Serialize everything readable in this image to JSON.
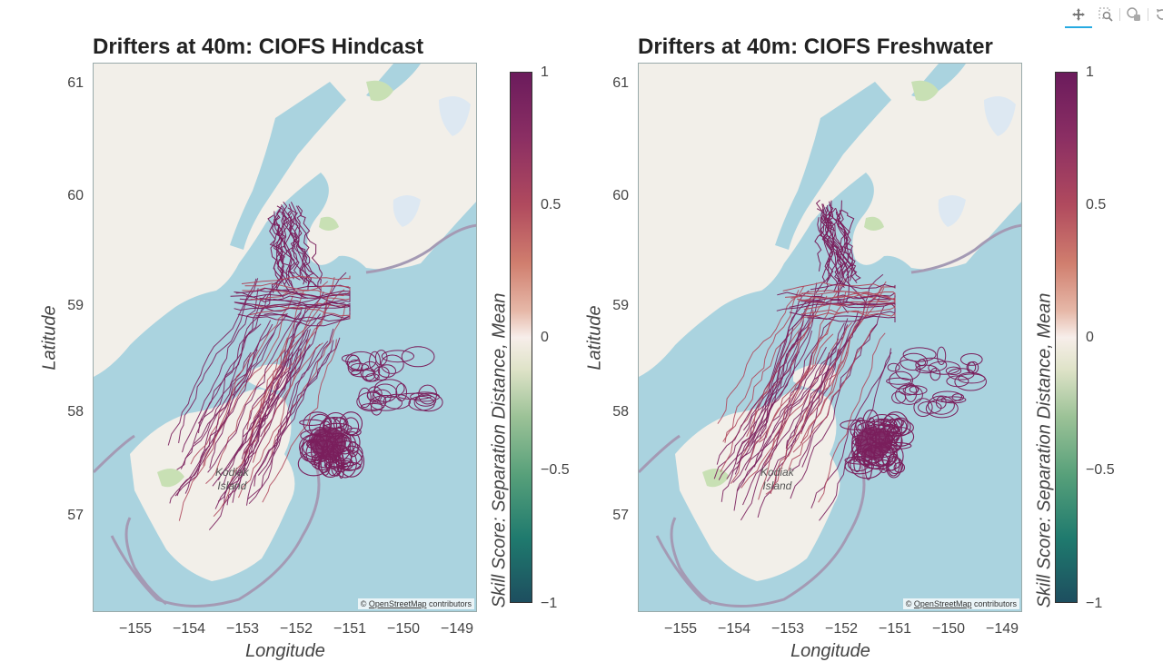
{
  "toolbar": {
    "tools": [
      {
        "name": "pan-tool",
        "icon": "pan-arrows-icon",
        "active": true
      },
      {
        "name": "box-zoom-tool",
        "icon": "box-zoom-icon",
        "active": false
      },
      {
        "name": "hover-tool",
        "icon": "hover-icon",
        "active": false
      },
      {
        "name": "reset-tool",
        "icon": "reset-icon",
        "active": false
      },
      {
        "name": "bokeh-logo",
        "icon": "bokeh-logo-icon",
        "active": false
      }
    ]
  },
  "panels": [
    {
      "title": "Drifters at 40m: CIOFS Hindcast",
      "xlabel": "Longitude",
      "ylabel": "Latitude",
      "yticks": [
        "61",
        "60",
        "59",
        "58",
        "57"
      ],
      "xticks": [
        "−155",
        "−154",
        "−153",
        "−152",
        "−151",
        "−150",
        "−149"
      ],
      "attribution": {
        "prefix": "© ",
        "link": "OpenStreetMap",
        "suffix": " contributors"
      },
      "map_labels": {
        "island": "Kodiak",
        "island2": "Island"
      },
      "colorbar": {
        "label": "Skill Score: Separation Distance, Mean",
        "ticks": [
          "1",
          "0.5",
          "0",
          "−0.5",
          "−1"
        ]
      }
    },
    {
      "title": "Drifters at 40m: CIOFS Freshwater",
      "xlabel": "Longitude",
      "ylabel": "Latitude",
      "yticks": [
        "61",
        "60",
        "59",
        "58",
        "57"
      ],
      "xticks": [
        "−155",
        "−154",
        "−153",
        "−152",
        "−151",
        "−150",
        "−149"
      ],
      "attribution": {
        "prefix": "© ",
        "link": "OpenStreetMap",
        "suffix": " contributors"
      },
      "map_labels": {
        "island": "Kodiak",
        "island2": "Island"
      },
      "colorbar": {
        "label": "Skill Score: Separation Distance, Mean",
        "ticks": [
          "1",
          "0.5",
          "0",
          "−0.5",
          "−1"
        ]
      }
    }
  ],
  "colors": {
    "ocean": "#aad3df",
    "land": "#f2efe9",
    "track_high": "#7a1f5c",
    "track_mid": "#b04a5e",
    "colormap_top": "#6b1b5c",
    "colormap_bottom": "#1d4e5f"
  }
}
